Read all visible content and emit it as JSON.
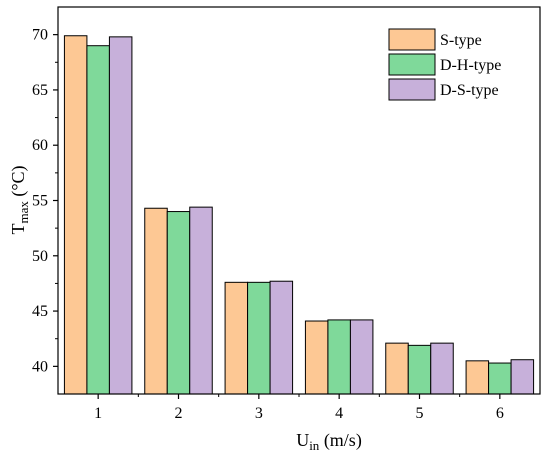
{
  "chart_data": {
    "type": "bar",
    "categories": [
      "1",
      "2",
      "3",
      "4",
      "5",
      "6"
    ],
    "series": [
      {
        "name": "S-type",
        "color": "#FDC894",
        "values": [
          69.9,
          54.3,
          47.6,
          44.1,
          42.1,
          40.5
        ]
      },
      {
        "name": "D-H-type",
        "color": "#7FD99A",
        "values": [
          69.0,
          54.0,
          47.6,
          44.2,
          41.9,
          40.3
        ]
      },
      {
        "name": "D-S-type",
        "color": "#C7B0DA",
        "values": [
          69.8,
          54.4,
          47.7,
          44.2,
          42.1,
          40.6
        ]
      }
    ],
    "xlabel": {
      "main": "U",
      "sub": "in",
      "rest": " (m/s)"
    },
    "ylabel": {
      "main": "T",
      "sub": "max",
      "rest": " (°C)"
    },
    "ylim": [
      37.5,
      72.5
    ],
    "yticks": [
      40,
      45,
      50,
      55,
      60,
      65,
      70
    ],
    "legend_position": "top-right",
    "grid": false
  }
}
